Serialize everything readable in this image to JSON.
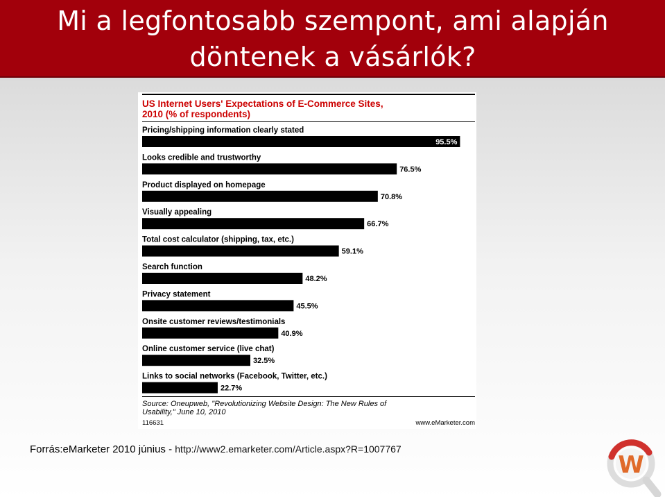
{
  "slide": {
    "title_line1": "Mi a legfontosabb szempont, ami alapján",
    "title_line2": "döntenek a vásárlók?"
  },
  "caption": {
    "source_label": "Forrás:eMarketer 2010 június - ",
    "url": "http://www2.emarketer.com/Article.aspx?R=1007767"
  },
  "logo": {
    "icon": "magnifier-w-logo-icon",
    "letter": "W",
    "color": "#d0312d"
  },
  "colors": {
    "title_bar": "#a2000b",
    "chart_title": "#cc0000",
    "bar": "#000000"
  },
  "chart_data": {
    "type": "bar",
    "orientation": "horizontal",
    "title_line1": "US Internet Users' Expectations of E-Commerce Sites,",
    "title_line2": "2010 (% of respondents)",
    "categories": [
      "Pricing/shipping information clearly stated",
      "Looks credible and trustworthy",
      "Product displayed on homepage",
      "Visually appealing",
      "Total cost calculator (shipping, tax, etc.)",
      "Search function",
      "Privacy statement",
      "Onsite customer reviews/testimonials",
      "Online customer service (live chat)",
      "Links to social networks (Facebook, Twitter, etc.)"
    ],
    "values": [
      95.5,
      76.5,
      70.8,
      66.7,
      59.1,
      48.2,
      45.5,
      40.9,
      32.5,
      22.7
    ],
    "value_labels": [
      "95.5%",
      "76.5%",
      "70.8%",
      "66.7%",
      "59.1%",
      "48.2%",
      "45.5%",
      "40.9%",
      "32.5%",
      "22.7%"
    ],
    "xlim": [
      0,
      100
    ],
    "source_line1": "Source: Oneupweb, \"Revolutionizing Website Design: The New Rules of",
    "source_line2": "Usability,\" June 10, 2010",
    "chart_id": "116631",
    "site": "www.eMarketer.com"
  }
}
